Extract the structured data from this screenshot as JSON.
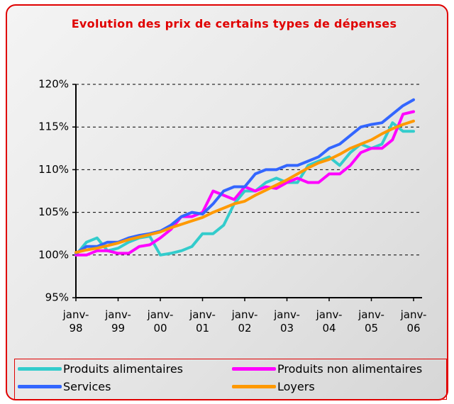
{
  "chart_data": {
    "type": "line",
    "title": "Evolution des prix de certains types de dépenses",
    "categories": [
      "janv-98",
      null,
      null,
      null,
      "janv-99",
      null,
      null,
      null,
      "janv-00",
      null,
      null,
      null,
      "janv-01",
      null,
      null,
      null,
      "janv-02",
      null,
      null,
      null,
      "janv-03",
      null,
      null,
      null,
      "janv-04",
      null,
      null,
      null,
      "janv-05",
      null,
      null,
      null,
      "janv-06"
    ],
    "series": [
      {
        "name": "Produits alimentaires",
        "color": "#33cccc",
        "values": [
          100,
          101.5,
          102,
          100.5,
          100.8,
          101.5,
          102,
          102.2,
          100,
          100.2,
          100.5,
          101,
          102.5,
          102.5,
          103.5,
          106,
          107.5,
          107.5,
          108.5,
          109,
          108.5,
          108.5,
          110.5,
          111,
          111.5,
          110.5,
          112,
          113,
          112.5,
          113,
          115.5,
          114.5,
          114.5
        ]
      },
      {
        "name": "Produits non alimentaires",
        "color": "#ff00ff",
        "values": [
          100,
          100,
          100.5,
          100.5,
          100.2,
          100.2,
          101,
          101.2,
          102,
          103,
          104.5,
          104.5,
          105,
          107.5,
          107,
          106.5,
          108,
          107.5,
          108,
          107.8,
          108.5,
          109,
          108.5,
          108.5,
          109.5,
          109.5,
          110.5,
          112,
          112.5,
          112.5,
          113.5,
          116.5,
          116.8
        ]
      },
      {
        "name": "Services",
        "color": "#3366ff",
        "values": [
          100.2,
          101,
          101,
          101.5,
          101.5,
          102,
          102.3,
          102.5,
          102.8,
          103.5,
          104.5,
          105,
          104.8,
          106,
          107.5,
          108,
          108,
          109.5,
          110,
          110,
          110.5,
          110.5,
          111,
          111.5,
          112.5,
          113,
          114,
          115,
          115.3,
          115.5,
          116.5,
          117.5,
          118.2
        ]
      },
      {
        "name": "Loyers",
        "color": "#ff9900",
        "values": [
          100.3,
          100.6,
          100.8,
          101.1,
          101.4,
          101.8,
          102.1,
          102.4,
          102.7,
          103.2,
          103.6,
          104,
          104.4,
          105,
          105.5,
          106,
          106.3,
          107,
          107.6,
          108.2,
          108.8,
          109.5,
          110.2,
          110.8,
          111.2,
          111.8,
          112.5,
          113,
          113.5,
          114.2,
          114.8,
          115.3,
          115.7
        ]
      }
    ],
    "ylim": [
      95,
      120
    ],
    "yticks": [
      {
        "value": 95,
        "label": "95%"
      },
      {
        "value": 100,
        "label": "100%"
      },
      {
        "value": 105,
        "label": "105%"
      },
      {
        "value": 110,
        "label": "110%"
      },
      {
        "value": 115,
        "label": "115%"
      },
      {
        "value": 120,
        "label": "120%"
      }
    ],
    "grid": true,
    "legend": "bottom"
  }
}
